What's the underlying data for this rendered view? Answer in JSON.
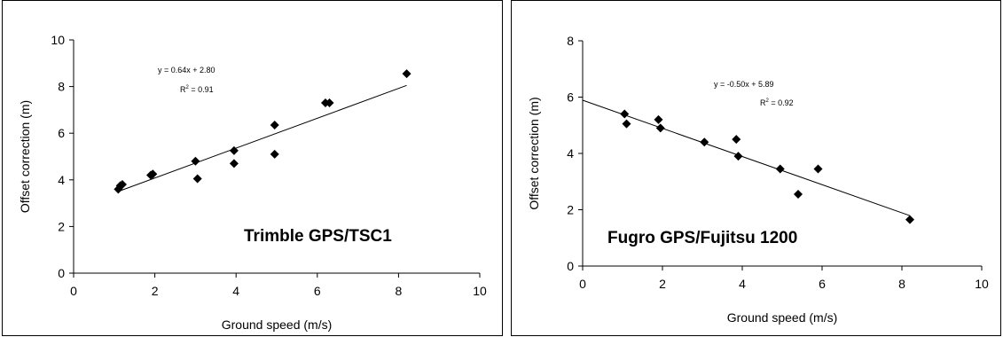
{
  "chart_data": [
    {
      "type": "scatter",
      "label": "Trimble GPS/TSC1",
      "xlabel": "Ground speed (m/s)",
      "ylabel": "Offset correction (m)",
      "xlim": [
        0,
        10
      ],
      "ylim": [
        0,
        10
      ],
      "xticks": [
        "0",
        "2",
        "4",
        "6",
        "8",
        "10"
      ],
      "yticks": [
        "0",
        "2",
        "4",
        "6",
        "8",
        "10"
      ],
      "equation": "y = 0.64x + 2.80",
      "r2_label": "R",
      "r2_value": "= 0.91",
      "trendline": {
        "slope": 0.64,
        "intercept": 2.8,
        "x_range": [
          1.1,
          8.2
        ]
      },
      "points": [
        {
          "x": 1.1,
          "y": 3.6
        },
        {
          "x": 1.15,
          "y": 3.75
        },
        {
          "x": 1.2,
          "y": 3.8
        },
        {
          "x": 1.9,
          "y": 4.2
        },
        {
          "x": 1.95,
          "y": 4.25
        },
        {
          "x": 3.0,
          "y": 4.8
        },
        {
          "x": 3.05,
          "y": 4.05
        },
        {
          "x": 3.95,
          "y": 5.25
        },
        {
          "x": 3.95,
          "y": 4.7
        },
        {
          "x": 4.95,
          "y": 6.35
        },
        {
          "x": 4.95,
          "y": 5.1
        },
        {
          "x": 6.2,
          "y": 7.3
        },
        {
          "x": 6.3,
          "y": 7.3
        },
        {
          "x": 8.2,
          "y": 8.55
        }
      ]
    },
    {
      "type": "scatter",
      "label": "Fugro GPS/Fujitsu 1200",
      "xlabel": "Ground speed (m/s)",
      "ylabel": "Offset correction (m)",
      "xlim": [
        0,
        10
      ],
      "ylim": [
        0,
        8
      ],
      "xticks": [
        "0",
        "2",
        "4",
        "6",
        "8",
        "10"
      ],
      "yticks": [
        "0",
        "2",
        "4",
        "6",
        "8"
      ],
      "equation": "y = -0.50x + 5.89",
      "r2_label": "R",
      "r2_value": "= 0.92",
      "trendline": {
        "slope": -0.5,
        "intercept": 5.89,
        "x_range": [
          0,
          8.2
        ]
      },
      "points": [
        {
          "x": 1.05,
          "y": 5.4
        },
        {
          "x": 1.1,
          "y": 5.05
        },
        {
          "x": 1.9,
          "y": 5.2
        },
        {
          "x": 1.95,
          "y": 4.9
        },
        {
          "x": 3.05,
          "y": 4.4
        },
        {
          "x": 3.85,
          "y": 4.5
        },
        {
          "x": 3.9,
          "y": 3.9
        },
        {
          "x": 4.95,
          "y": 3.45
        },
        {
          "x": 5.4,
          "y": 2.55
        },
        {
          "x": 5.9,
          "y": 3.45
        },
        {
          "x": 8.2,
          "y": 1.65
        }
      ]
    }
  ]
}
